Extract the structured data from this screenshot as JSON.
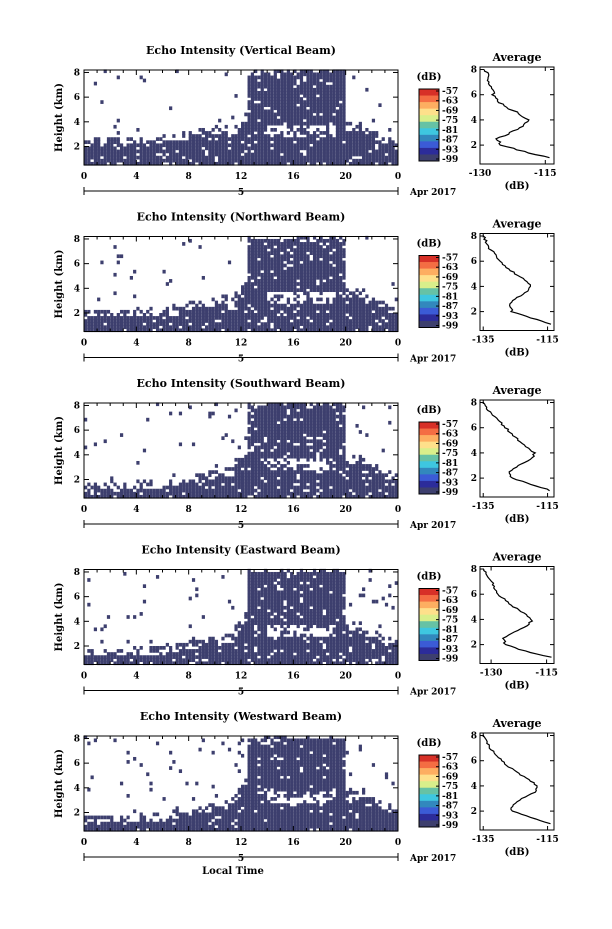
{
  "figure": {
    "date_label": "5",
    "date_suffix": "Apr 2017",
    "xlabel": "Local Time",
    "ylabel": "Height (km)",
    "colorbar_unit": "(dB)",
    "colorbar_ticks": [
      "-57",
      "-63",
      "-69",
      "-75",
      "-81",
      "-87",
      "-93",
      "-99"
    ],
    "colorbar_colors": [
      "#d73027",
      "#f46d43",
      "#fdae61",
      "#fee08b",
      "#d9ef8b",
      "#66c2a5",
      "#3ec7e0",
      "#3288bd",
      "#3b5bd6",
      "#2c2c9a",
      "#3d3f6e"
    ],
    "echo_color": "#3d3f6e",
    "avg_title": "Average",
    "avg_xlabel": "(dB)"
  },
  "chart_data": [
    {
      "type": "heatmap",
      "title": "Echo Intensity (Vertical Beam)",
      "x_ticks": [
        "0",
        "4",
        "8",
        "12",
        "16",
        "20",
        "0"
      ],
      "y_ticks": [
        "2",
        "4",
        "6",
        "8"
      ],
      "xlim": [
        0,
        24
      ],
      "ylim": [
        0.5,
        8.2
      ],
      "avg_profile": {
        "title": "Average",
        "xlabel": "(dB)",
        "xlim": [
          -130,
          -113
        ],
        "x_ticks": [
          "-130",
          "-115"
        ],
        "ylim": [
          0.5,
          8.2
        ],
        "y_ticks": [
          "2",
          "4",
          "6",
          "8"
        ],
        "height": [
          1.0,
          1.5,
          2.0,
          2.5,
          3.0,
          3.5,
          4.0,
          4.5,
          5.0,
          5.5,
          6.0,
          6.5,
          7.0,
          7.5,
          8.0
        ],
        "db": [
          -114,
          -120,
          -125,
          -126,
          -123,
          -120,
          -119,
          -121,
          -124,
          -126,
          -127,
          -127,
          -128,
          -128,
          -129
        ]
      }
    },
    {
      "type": "heatmap",
      "title": "Echo Intensity (Northward Beam)",
      "x_ticks": [
        "0",
        "4",
        "8",
        "12",
        "16",
        "20",
        "0"
      ],
      "y_ticks": [
        "2",
        "4",
        "6",
        "8"
      ],
      "xlim": [
        0,
        24
      ],
      "ylim": [
        0.5,
        8.2
      ],
      "avg_profile": {
        "title": "Average",
        "xlabel": "(dB)",
        "xlim": [
          -136,
          -113
        ],
        "x_ticks": [
          "-135",
          "-115"
        ],
        "ylim": [
          0.5,
          8.2
        ],
        "y_ticks": [
          "2",
          "4",
          "6",
          "8"
        ],
        "height": [
          1.0,
          1.5,
          2.0,
          2.5,
          3.0,
          3.5,
          4.0,
          4.5,
          5.0,
          5.5,
          6.0,
          6.5,
          7.0,
          7.5,
          8.0
        ],
        "db": [
          -114,
          -120,
          -126,
          -127,
          -125,
          -122,
          -120,
          -122,
          -125,
          -128,
          -130,
          -131,
          -133,
          -134,
          -135
        ]
      }
    },
    {
      "type": "heatmap",
      "title": "Echo Intensity (Southward Beam)",
      "x_ticks": [
        "0",
        "4",
        "8",
        "12",
        "16",
        "20",
        "0"
      ],
      "y_ticks": [
        "2",
        "4",
        "6",
        "8"
      ],
      "xlim": [
        0,
        24
      ],
      "ylim": [
        0.5,
        8.2
      ],
      "avg_profile": {
        "title": "Average",
        "xlabel": "(dB)",
        "xlim": [
          -136,
          -113
        ],
        "x_ticks": [
          "-135",
          "-115"
        ],
        "ylim": [
          0.5,
          8.2
        ],
        "y_ticks": [
          "2",
          "4",
          "6",
          "8"
        ],
        "height": [
          1.0,
          1.5,
          2.0,
          2.5,
          3.0,
          3.5,
          4.0,
          4.5,
          5.0,
          5.5,
          6.0,
          6.5,
          7.0,
          7.5,
          8.0
        ],
        "db": [
          -114,
          -120,
          -126,
          -127,
          -124,
          -120,
          -119,
          -122,
          -124,
          -126,
          -128,
          -130,
          -132,
          -134,
          -135
        ]
      }
    },
    {
      "type": "heatmap",
      "title": "Echo Intensity (Eastward Beam)",
      "x_ticks": [
        "0",
        "4",
        "8",
        "12",
        "16",
        "20",
        "0"
      ],
      "y_ticks": [
        "2",
        "4",
        "6",
        "8"
      ],
      "xlim": [
        0,
        24
      ],
      "ylim": [
        0.5,
        8.2
      ],
      "avg_profile": {
        "title": "Average",
        "xlabel": "(dB)",
        "xlim": [
          -133,
          -113
        ],
        "x_ticks": [
          "-130",
          "-115"
        ],
        "ylim": [
          0.5,
          8.2
        ],
        "y_ticks": [
          "2",
          "4",
          "6",
          "8"
        ],
        "height": [
          1.0,
          1.5,
          2.0,
          2.5,
          3.0,
          3.5,
          4.0,
          4.5,
          5.0,
          5.5,
          6.0,
          6.5,
          7.0,
          7.5,
          8.0
        ],
        "db": [
          -114,
          -121,
          -126,
          -127,
          -124,
          -120,
          -119,
          -121,
          -124,
          -126,
          -128,
          -129,
          -130,
          -131,
          -132
        ]
      }
    },
    {
      "type": "heatmap",
      "title": "Echo Intensity (Westward Beam)",
      "x_ticks": [
        "0",
        "4",
        "8",
        "12",
        "16",
        "20",
        "0"
      ],
      "y_ticks": [
        "2",
        "4",
        "6",
        "8"
      ],
      "xlim": [
        0,
        24
      ],
      "ylim": [
        0.5,
        8.2
      ],
      "avg_profile": {
        "title": "Average",
        "xlabel": "(dB)",
        "xlim": [
          -136,
          -113
        ],
        "x_ticks": [
          "-135",
          "-115"
        ],
        "ylim": [
          0.5,
          8.2
        ],
        "y_ticks": [
          "2",
          "4",
          "6",
          "8"
        ],
        "height": [
          1.0,
          1.5,
          2.0,
          2.5,
          3.0,
          3.5,
          4.0,
          4.5,
          5.0,
          5.5,
          6.0,
          6.5,
          7.0,
          7.5,
          8.0
        ],
        "db": [
          -114,
          -120,
          -126,
          -126,
          -123,
          -119,
          -118,
          -121,
          -124,
          -127,
          -129,
          -131,
          -133,
          -134,
          -135
        ]
      }
    }
  ]
}
